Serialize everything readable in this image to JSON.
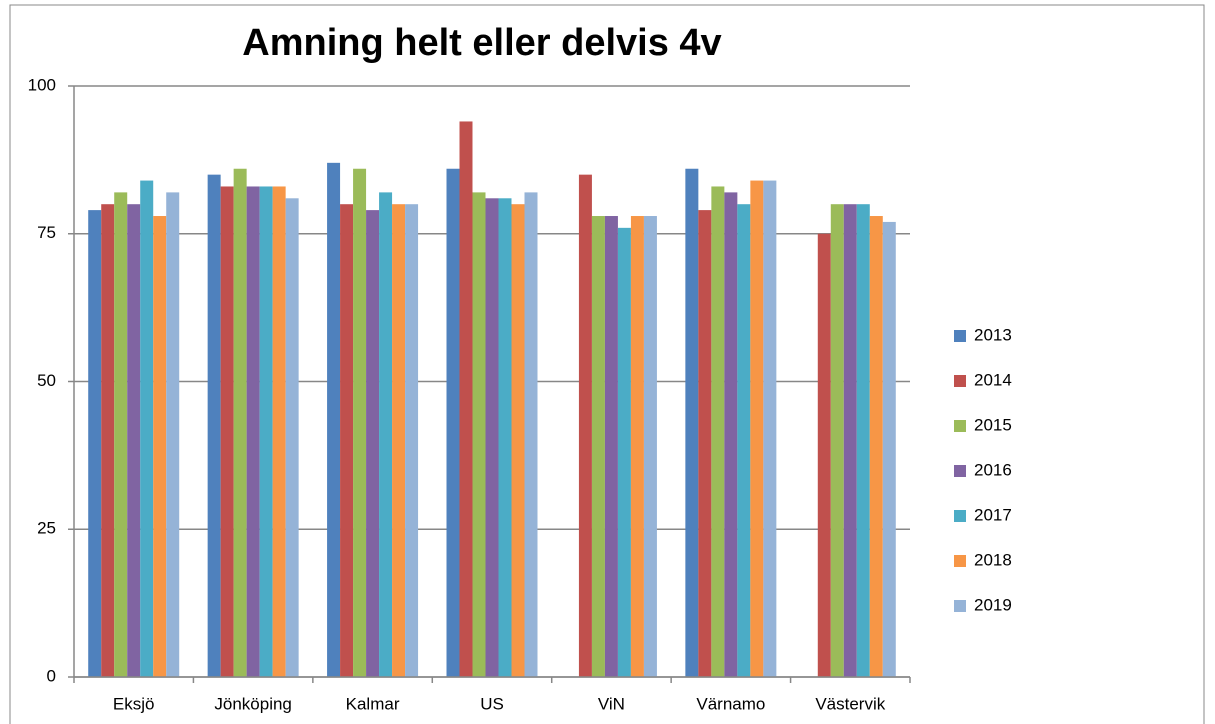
{
  "chart_data": {
    "type": "bar",
    "title": "Amning helt eller delvis 4v",
    "categories": [
      "Eksjö",
      "Jönköping",
      "Kalmar",
      "US",
      "ViN",
      "Värnamo",
      "Västervik"
    ],
    "series": [
      {
        "name": "2013",
        "color": "#4f81bd",
        "values": [
          79,
          85,
          87,
          86,
          null,
          86,
          null
        ]
      },
      {
        "name": "2014",
        "color": "#c0504d",
        "values": [
          80,
          83,
          80,
          94,
          85,
          79,
          75
        ]
      },
      {
        "name": "2015",
        "color": "#9bbb59",
        "values": [
          82,
          86,
          86,
          82,
          78,
          83,
          80
        ]
      },
      {
        "name": "2016",
        "color": "#8064a2",
        "values": [
          80,
          83,
          79,
          81,
          78,
          82,
          80
        ]
      },
      {
        "name": "2017",
        "color": "#4bacc6",
        "values": [
          84,
          83,
          82,
          81,
          76,
          80,
          80
        ]
      },
      {
        "name": "2018",
        "color": "#f79646",
        "values": [
          78,
          83,
          80,
          80,
          78,
          84,
          78
        ]
      },
      {
        "name": "2019",
        "color": "#95b3d7",
        "values": [
          82,
          81,
          80,
          82,
          78,
          84,
          77
        ]
      }
    ],
    "ylim": [
      0,
      100
    ],
    "yticks": [
      0,
      25,
      50,
      75,
      100
    ],
    "grid": true,
    "legend": "right"
  }
}
